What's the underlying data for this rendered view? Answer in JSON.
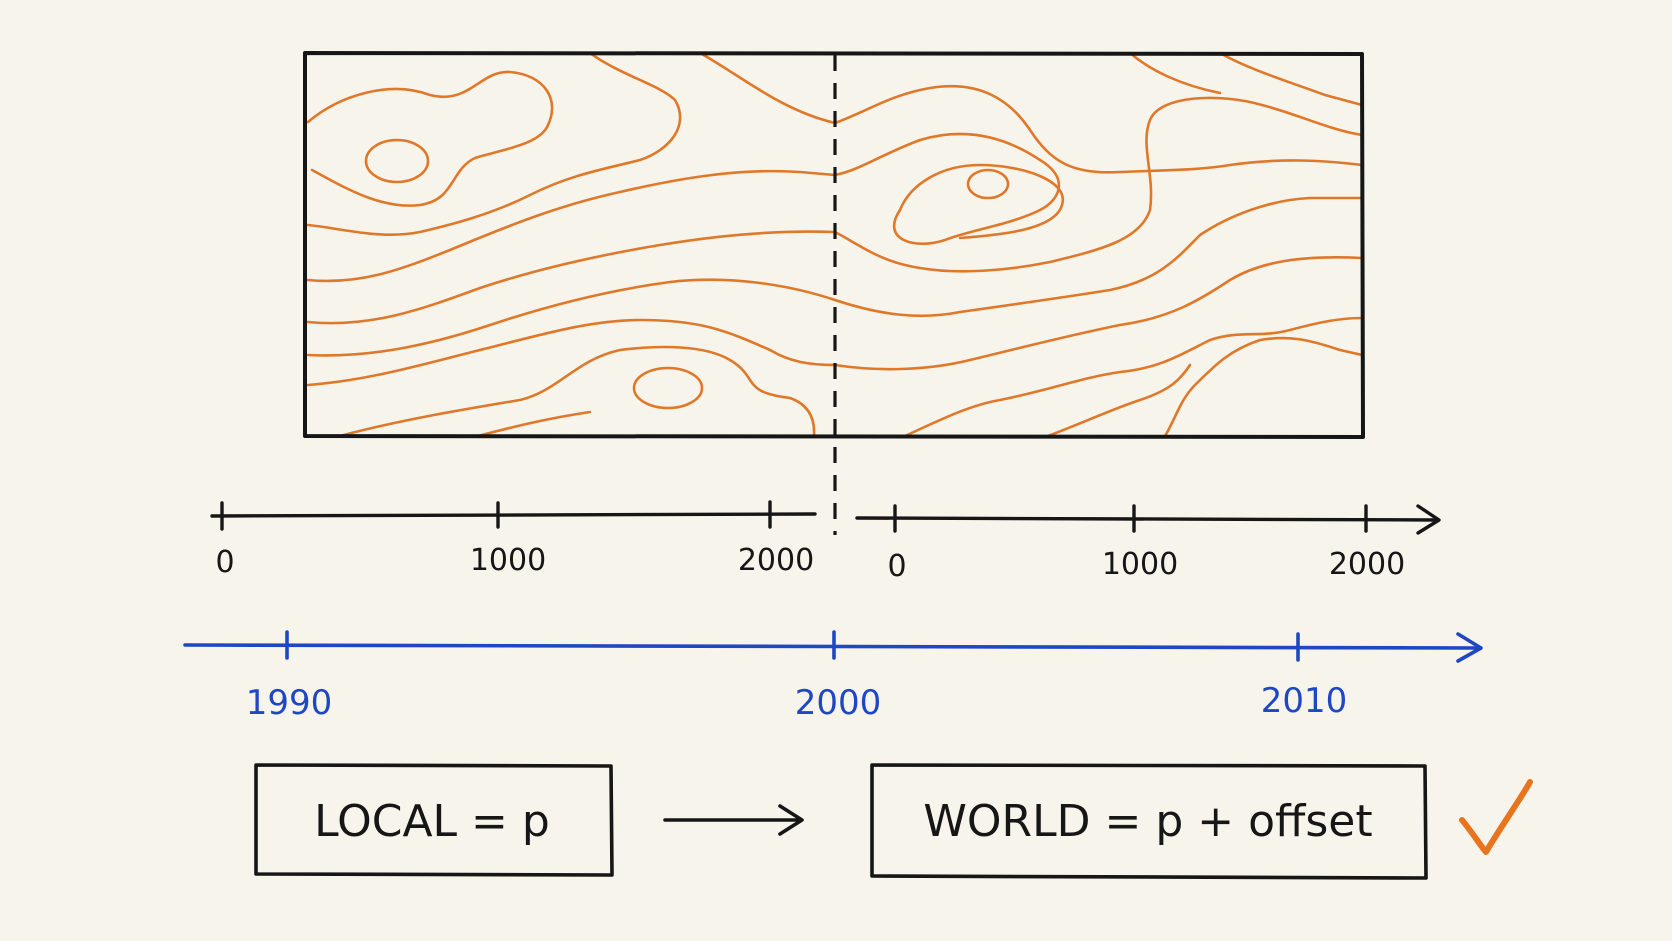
{
  "colors": {
    "background": "#f7f4ec",
    "ink": "#161616",
    "contour": "#e0782a",
    "timeline": "#1f47c4",
    "check": "#e8741e"
  },
  "local_axis_left": {
    "ticks": [
      "0",
      "1000",
      "2000"
    ]
  },
  "local_axis_right": {
    "ticks": [
      "0",
      "1000",
      "2000"
    ]
  },
  "world_axis": {
    "ticks": [
      "1990",
      "2000",
      "2010"
    ]
  },
  "formulas": {
    "local": "LOCAL = p",
    "world": "WORLD = p + offset"
  },
  "icons": {
    "arrow": "arrow-right-icon",
    "check": "checkmark-icon"
  }
}
